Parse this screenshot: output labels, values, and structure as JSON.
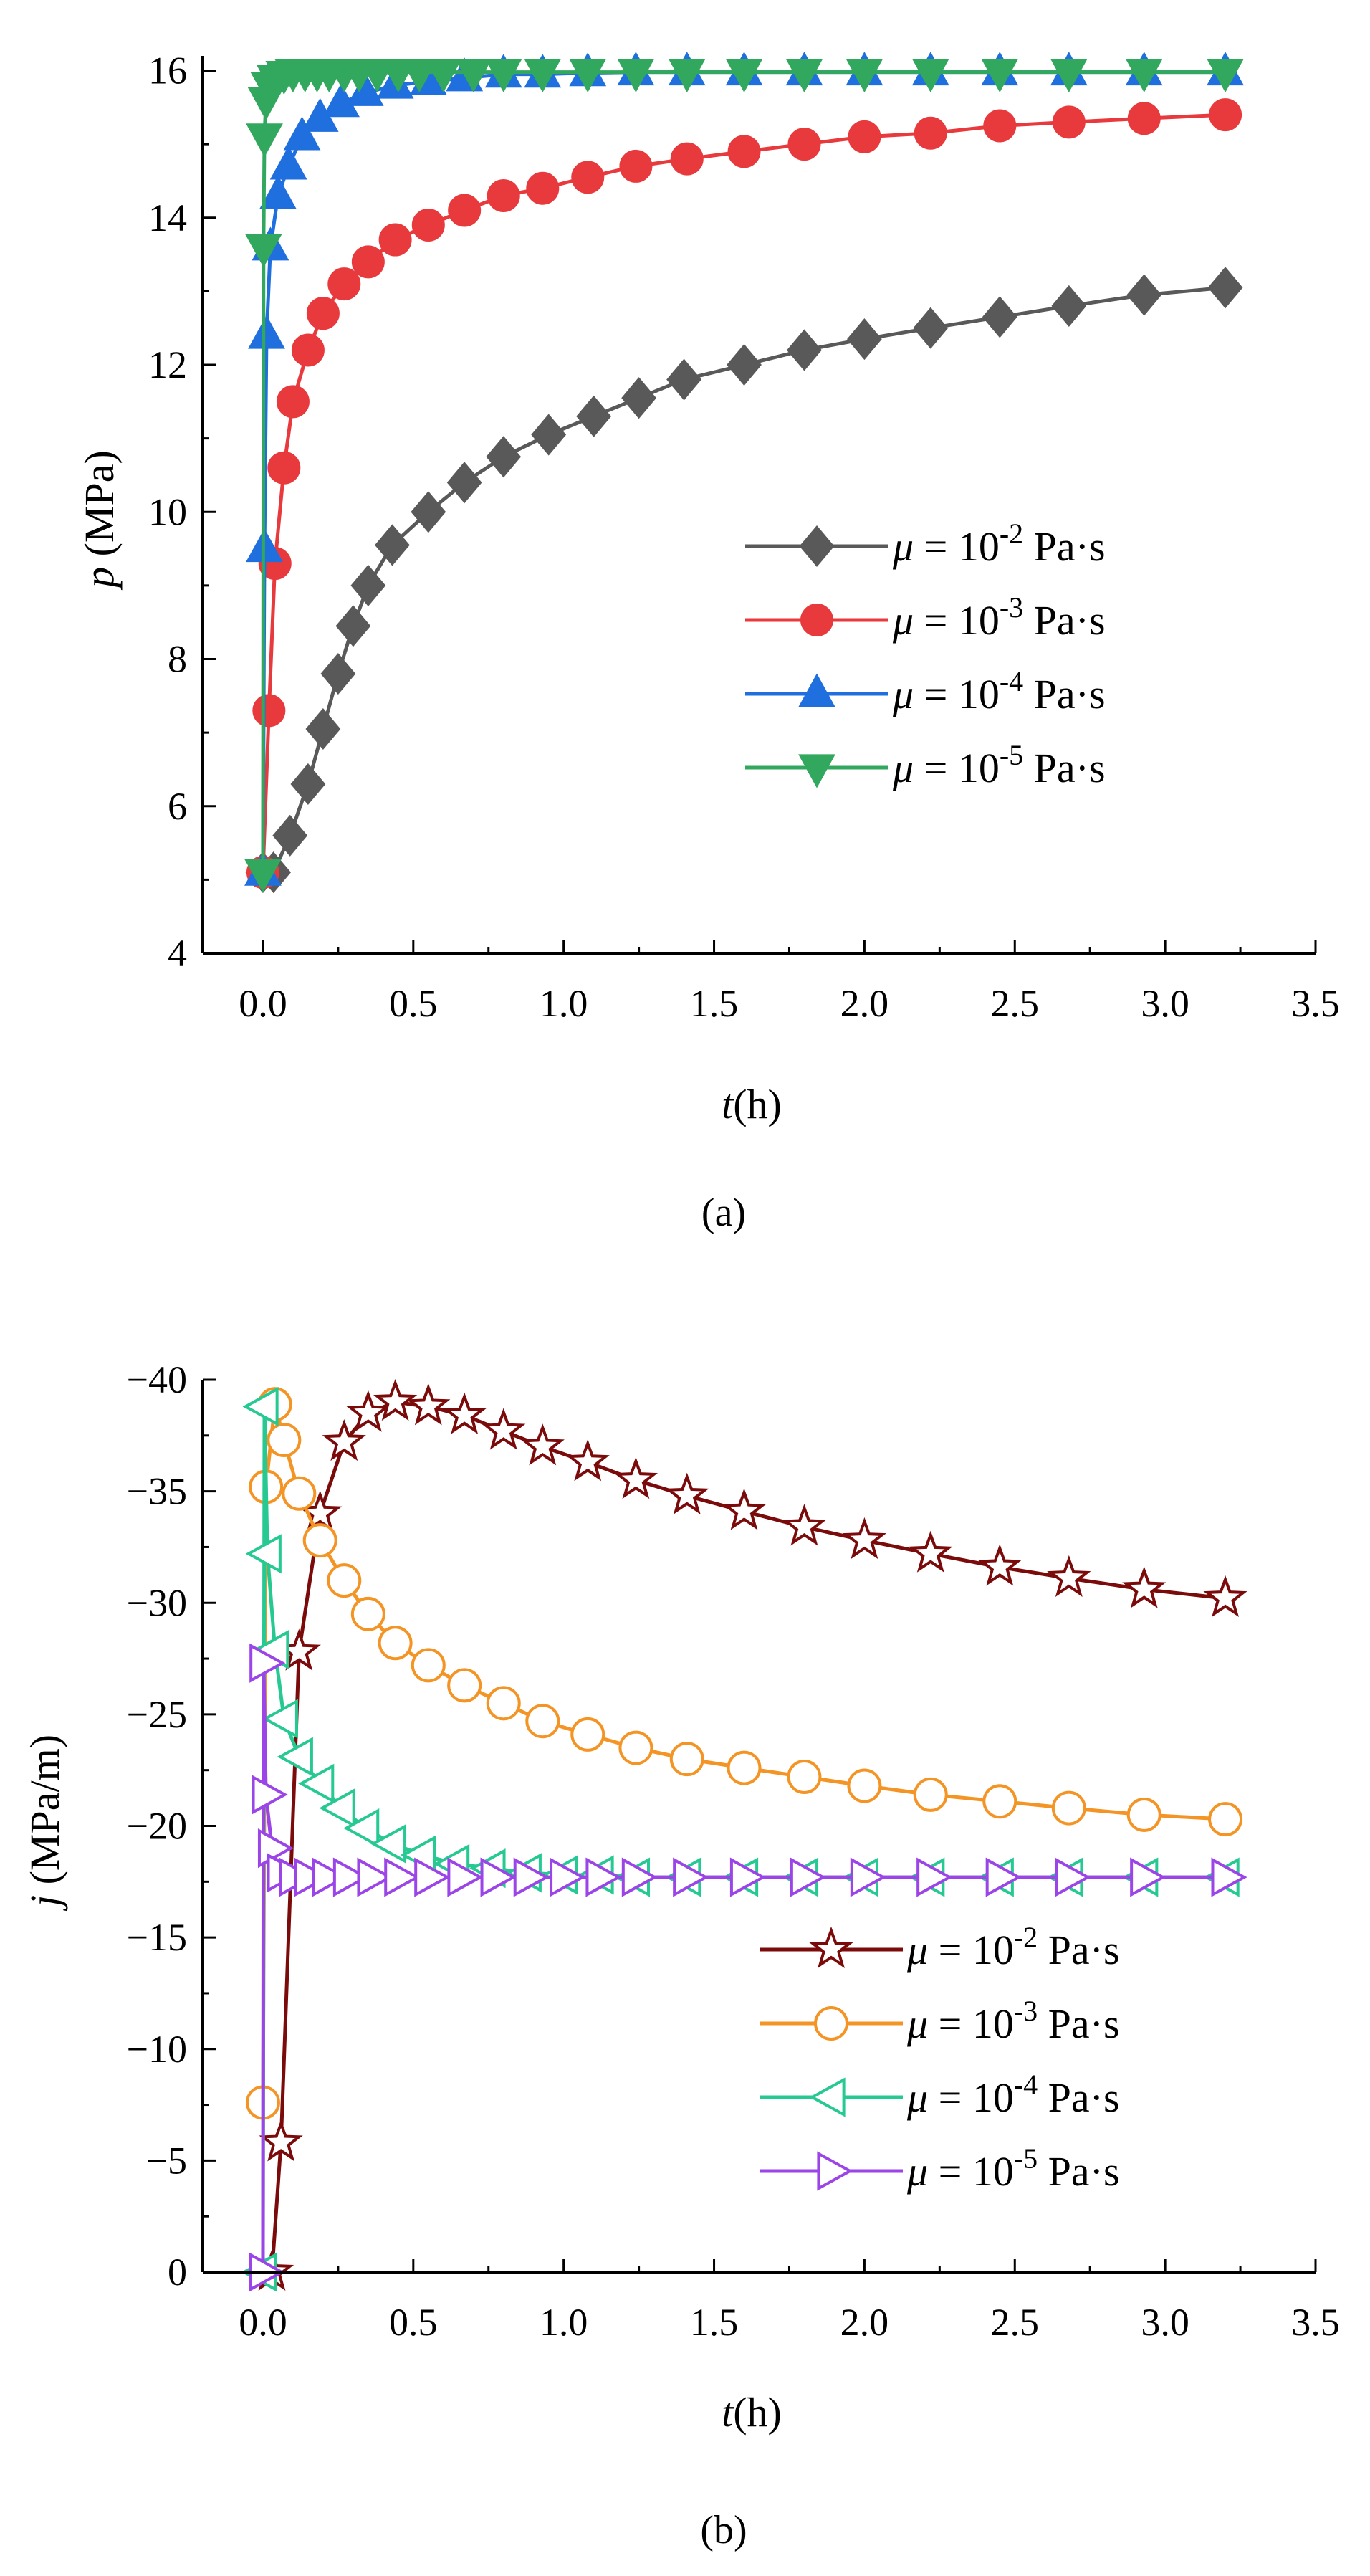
{
  "figure": {
    "panel_a_label": "(a)",
    "panel_b_label": "(b)"
  },
  "colors": {
    "mu_1e-2_p": "#595959",
    "mu_1e-3_p": "#e8393d",
    "mu_1e-4_p": "#1f6fde",
    "mu_1e-5_p": "#31a85e",
    "mu_1e-2_j": "#7b0a0a",
    "mu_1e-3_j": "#f39424",
    "mu_1e-4_j": "#27c992",
    "mu_1e-5_j": "#9b45e8"
  },
  "chart_data": [
    {
      "id": "a",
      "type": "line",
      "panel_label": "(a)",
      "xlabel_var": "t",
      "xlabel_unit": "(h)",
      "ylabel_var": "p",
      "ylabel_unit": " (MPa)",
      "xlim": [
        -0.2,
        3.5
      ],
      "ylim": [
        4,
        16.2
      ],
      "xticks": [
        0.0,
        0.5,
        1.0,
        1.5,
        2.0,
        2.5,
        3.0,
        3.5
      ],
      "xtick_labels": [
        "0.0",
        "0.5",
        "1.0",
        "1.5",
        "2.0",
        "2.5",
        "3.0",
        "3.5"
      ],
      "yticks": [
        4,
        6,
        8,
        10,
        12,
        14,
        16
      ],
      "ytick_labels": [
        "4",
        "6",
        "8",
        "10",
        "12",
        "14",
        "16"
      ],
      "y_reversed": false,
      "legend_position": "center-right",
      "series": [
        {
          "name": "μ = 10-2 Pa·s",
          "legend_prefix": "μ",
          "legend_mid": " = 10",
          "legend_exp": "-2",
          "legend_suffix": " Pa·s",
          "color": "#595959",
          "marker": "diamond",
          "filled": true,
          "x": [
            0,
            0.035,
            0.09,
            0.15,
            0.2,
            0.25,
            0.3,
            0.35,
            0.43,
            0.55,
            0.67,
            0.8,
            0.95,
            1.1,
            1.25,
            1.4,
            1.6,
            1.8,
            2.0,
            2.22,
            2.45,
            2.68,
            2.93,
            3.2
          ],
          "y": [
            5.1,
            5.1,
            5.6,
            6.3,
            7.05,
            7.8,
            8.45,
            9.0,
            9.55,
            10.0,
            10.4,
            10.75,
            11.05,
            11.3,
            11.55,
            11.8,
            12.0,
            12.2,
            12.35,
            12.5,
            12.65,
            12.8,
            12.95,
            13.05
          ]
        },
        {
          "name": "μ = 10-3 Pa·s",
          "legend_prefix": "μ",
          "legend_mid": " = 10",
          "legend_exp": "-3",
          "legend_suffix": " Pa·s",
          "color": "#e8393d",
          "marker": "circle",
          "filled": true,
          "x": [
            0,
            0.02,
            0.04,
            0.07,
            0.1,
            0.15,
            0.2,
            0.27,
            0.35,
            0.44,
            0.55,
            0.67,
            0.8,
            0.93,
            1.08,
            1.24,
            1.41,
            1.6,
            1.8,
            2.0,
            2.22,
            2.45,
            2.68,
            2.93,
            3.2
          ],
          "y": [
            5.1,
            7.3,
            9.3,
            10.6,
            11.5,
            12.2,
            12.7,
            13.1,
            13.4,
            13.7,
            13.9,
            14.1,
            14.3,
            14.4,
            14.55,
            14.7,
            14.8,
            14.9,
            15.0,
            15.1,
            15.15,
            15.25,
            15.3,
            15.35,
            15.4
          ]
        },
        {
          "name": "μ = 10-4 Pa·s",
          "legend_prefix": "μ",
          "legend_mid": " = 10",
          "legend_exp": "-4",
          "legend_suffix": " Pa·s",
          "color": "#1f6fde",
          "marker": "triangle-up",
          "filled": true,
          "x": [
            0,
            0.005,
            0.012,
            0.025,
            0.05,
            0.085,
            0.13,
            0.19,
            0.26,
            0.34,
            0.44,
            0.55,
            0.67,
            0.8,
            0.93,
            1.08,
            1.24,
            1.41,
            1.6,
            1.8,
            2.0,
            2.22,
            2.45,
            2.68,
            2.93,
            3.2
          ],
          "y": [
            5.1,
            9.5,
            12.4,
            13.6,
            14.3,
            14.7,
            15.1,
            15.35,
            15.55,
            15.7,
            15.8,
            15.85,
            15.9,
            15.95,
            15.95,
            15.97,
            15.98,
            15.98,
            15.98,
            15.98,
            15.98,
            15.98,
            15.98,
            15.98,
            15.98,
            15.98
          ]
        },
        {
          "name": "μ = 10-5 Pa·s",
          "legend_prefix": "μ",
          "legend_mid": " = 10",
          "legend_exp": "-5",
          "legend_suffix": " Pa·s",
          "color": "#31a85e",
          "marker": "triangle-down",
          "filled": true,
          "x": [
            0,
            0.002,
            0.005,
            0.01,
            0.02,
            0.04,
            0.07,
            0.1,
            0.14,
            0.18,
            0.22,
            0.27,
            0.32,
            0.38,
            0.45,
            0.52,
            0.6,
            0.7,
            0.8,
            0.93,
            1.08,
            1.24,
            1.41,
            1.6,
            1.8,
            2.0,
            2.22,
            2.45,
            2.68,
            2.93,
            3.2
          ],
          "y": [
            5.1,
            13.6,
            15.1,
            15.6,
            15.8,
            15.9,
            15.95,
            15.98,
            15.98,
            15.98,
            15.98,
            15.98,
            15.98,
            15.98,
            15.98,
            15.98,
            15.98,
            15.98,
            15.98,
            15.98,
            15.98,
            15.98,
            15.98,
            15.98,
            15.98,
            15.98,
            15.98,
            15.98,
            15.98,
            15.98,
            15.98
          ]
        }
      ]
    },
    {
      "id": "b",
      "type": "line",
      "panel_label": "(b)",
      "xlabel_var": "t",
      "xlabel_unit": "(h)",
      "ylabel_var": "j",
      "ylabel_unit": " (MPa/m)",
      "xlim": [
        -0.2,
        3.5
      ],
      "ylim": [
        0,
        -40
      ],
      "xticks": [
        0.0,
        0.5,
        1.0,
        1.5,
        2.0,
        2.5,
        3.0,
        3.5
      ],
      "xtick_labels": [
        "0.0",
        "0.5",
        "1.0",
        "1.5",
        "2.0",
        "2.5",
        "3.0",
        "3.5"
      ],
      "yticks": [
        0,
        -5,
        -10,
        -15,
        -20,
        -25,
        -30,
        -35,
        -40
      ],
      "ytick_labels": [
        "0",
        "−5",
        "−10",
        "−15",
        "−20",
        "−25",
        "−30",
        "−35",
        "−40"
      ],
      "y_reversed": true,
      "legend_position": "lower-right",
      "series": [
        {
          "name": "μ = 10-2 Pa·s",
          "legend_prefix": "μ",
          "legend_mid": " = 10",
          "legend_exp": "-2",
          "legend_suffix": " Pa·s",
          "color": "#7b0a0a",
          "marker": "star",
          "filled": false,
          "x": [
            0.03,
            0.06,
            0.12,
            0.19,
            0.27,
            0.35,
            0.44,
            0.55,
            0.67,
            0.8,
            0.93,
            1.08,
            1.24,
            1.41,
            1.6,
            1.8,
            2.0,
            2.22,
            2.45,
            2.68,
            2.93,
            3.2
          ],
          "y": [
            0,
            -5.8,
            -27.8,
            -34.0,
            -37.2,
            -38.5,
            -39.0,
            -38.8,
            -38.4,
            -37.7,
            -37.0,
            -36.3,
            -35.5,
            -34.8,
            -34.1,
            -33.4,
            -32.8,
            -32.2,
            -31.6,
            -31.1,
            -30.6,
            -30.2
          ]
        },
        {
          "name": "μ = 10-3 Pa·s",
          "legend_prefix": "μ",
          "legend_mid": " = 10",
          "legend_exp": "-3",
          "legend_suffix": " Pa·s",
          "color": "#f39424",
          "marker": "circle",
          "filled": false,
          "x": [
            0,
            0.01,
            0.04,
            0.07,
            0.12,
            0.19,
            0.27,
            0.35,
            0.44,
            0.55,
            0.67,
            0.8,
            0.93,
            1.08,
            1.24,
            1.41,
            1.6,
            1.8,
            2.0,
            2.22,
            2.45,
            2.68,
            2.93,
            3.2
          ],
          "y": [
            -7.6,
            -35.2,
            -38.9,
            -37.3,
            -34.9,
            -32.8,
            -31.0,
            -29.5,
            -28.2,
            -27.2,
            -26.3,
            -25.5,
            -24.7,
            -24.1,
            -23.5,
            -23.0,
            -22.6,
            -22.2,
            -21.8,
            -21.4,
            -21.1,
            -20.8,
            -20.5,
            -20.3
          ]
        },
        {
          "name": "μ = 10-4 Pa·s",
          "legend_prefix": "μ",
          "legend_mid": " = 10",
          "legend_exp": "-4",
          "legend_suffix": " Pa·s",
          "color": "#27c992",
          "marker": "triangle-left",
          "filled": false,
          "x": [
            0,
            0.005,
            0.015,
            0.04,
            0.07,
            0.12,
            0.19,
            0.26,
            0.34,
            0.43,
            0.53,
            0.64,
            0.76,
            0.88,
            1.0,
            1.12,
            1.24,
            1.41,
            1.6,
            1.8,
            2.0,
            2.22,
            2.45,
            2.68,
            2.93,
            3.2
          ],
          "y": [
            0,
            -38.8,
            -32.2,
            -27.9,
            -24.8,
            -23.1,
            -21.9,
            -20.8,
            -19.9,
            -19.2,
            -18.7,
            -18.3,
            -18.1,
            -17.9,
            -17.8,
            -17.8,
            -17.7,
            -17.7,
            -17.7,
            -17.7,
            -17.7,
            -17.7,
            -17.7,
            -17.7,
            -17.7,
            -17.7
          ]
        },
        {
          "name": "μ = 10-5 Pa·s",
          "legend_prefix": "μ",
          "legend_mid": " = 10",
          "legend_exp": "-5",
          "legend_suffix": " Pa·s",
          "color": "#9b45e8",
          "marker": "triangle-right",
          "filled": false,
          "x": [
            0,
            0.002,
            0.01,
            0.03,
            0.06,
            0.1,
            0.15,
            0.21,
            0.28,
            0.36,
            0.45,
            0.55,
            0.66,
            0.77,
            0.88,
            1.0,
            1.12,
            1.24,
            1.41,
            1.6,
            1.8,
            2.0,
            2.22,
            2.45,
            2.68,
            2.93,
            3.2
          ],
          "y": [
            0,
            -27.3,
            -21.4,
            -19.0,
            -17.9,
            -17.7,
            -17.7,
            -17.7,
            -17.7,
            -17.7,
            -17.7,
            -17.7,
            -17.7,
            -17.7,
            -17.7,
            -17.7,
            -17.7,
            -17.7,
            -17.7,
            -17.7,
            -17.7,
            -17.7,
            -17.7,
            -17.7,
            -17.7,
            -17.7,
            -17.7
          ]
        }
      ]
    }
  ]
}
